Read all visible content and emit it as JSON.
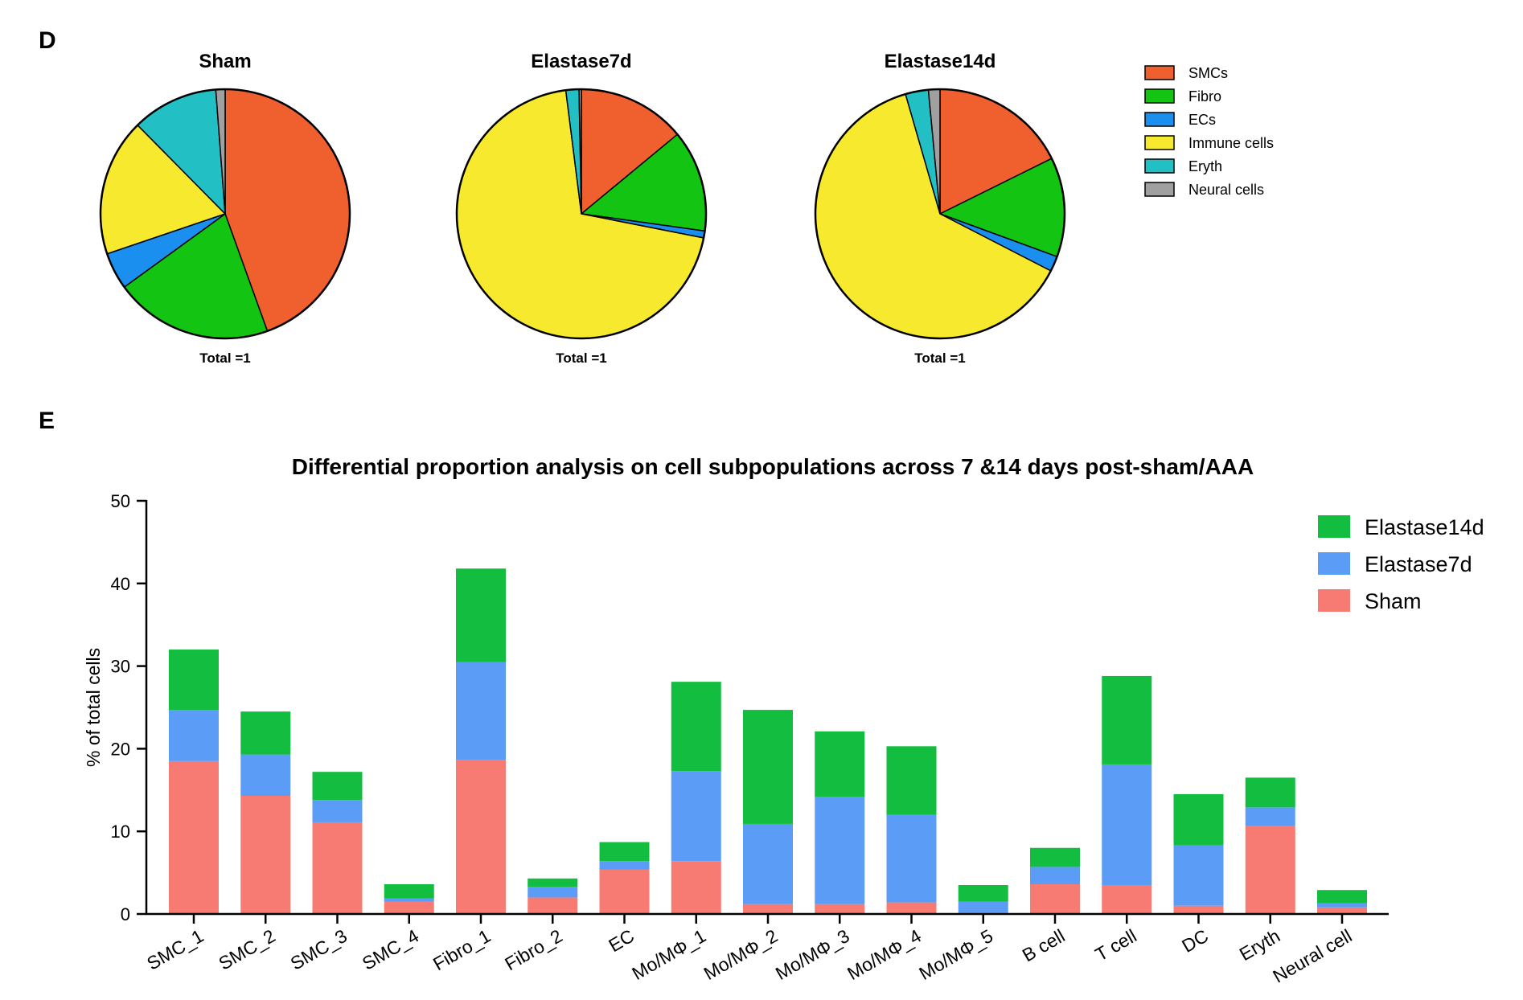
{
  "panel_d_letter": "D",
  "panel_e_letter": "E",
  "colors": {
    "SMCs": "#f0602f",
    "Fibro": "#13c413",
    "ECs": "#1a8ff0",
    "Immune cells": "#f7ea2e",
    "Eryth": "#22bfc4",
    "Neural cells": "#a0a0a0",
    "Elastase14d": "#13bd3f",
    "Elastase7d": "#5b9cf7",
    "Sham": "#f77b72"
  },
  "chart_data": [
    {
      "type": "pie",
      "title": "Sham",
      "footer": "Total =1",
      "labels": [
        "SMCs",
        "Fibro",
        "ECs",
        "Immune cells",
        "Eryth",
        "Neural cells"
      ],
      "values": [
        0.445,
        0.205,
        0.048,
        0.178,
        0.112,
        0.012
      ]
    },
    {
      "type": "pie",
      "title": "Elastase7d",
      "footer": "Total =1",
      "labels": [
        "SMCs",
        "Fibro",
        "ECs",
        "Immune cells",
        "Eryth",
        "Neural cells"
      ],
      "values": [
        0.14,
        0.132,
        0.009,
        0.699,
        0.017,
        0.003
      ]
    },
    {
      "type": "pie",
      "title": "Elastase14d",
      "footer": "Total =1",
      "labels": [
        "SMCs",
        "Fibro",
        "ECs",
        "Immune cells",
        "Eryth",
        "Neural cells"
      ],
      "values": [
        0.178,
        0.13,
        0.02,
        0.634,
        0.03,
        0.015
      ]
    },
    {
      "type": "bar",
      "stacked": true,
      "title": "Differential proportion analysis on cell subpopulations across 7 &14 days post-sham/AAA",
      "ylabel": "% of total cells",
      "xlabel": "",
      "ylim": [
        0,
        50
      ],
      "yticks": [
        0,
        10,
        20,
        30,
        40,
        50
      ],
      "legend_order": [
        "Elastase14d",
        "Elastase7d",
        "Sham"
      ],
      "categories": [
        "SMC_1",
        "SMC_2",
        "SMC_3",
        "SMC_4",
        "Fibro_1",
        "Fibro_2",
        "EC",
        "Mo/MΦ_1",
        "Mo/MΦ_2",
        "Mo/MΦ_3",
        "Mo/MΦ_4",
        "Mo/MΦ_5",
        "B cell",
        "T cell",
        "DC",
        "Eryth",
        "Neural cell"
      ],
      "series": [
        {
          "name": "Sham",
          "values": [
            18.5,
            14.3,
            11.1,
            1.5,
            18.6,
            2.0,
            5.4,
            6.4,
            1.2,
            1.2,
            1.4,
            0.2,
            3.6,
            3.5,
            1.0,
            10.7,
            0.8
          ]
        },
        {
          "name": "Elastase7d",
          "values": [
            6.2,
            5.0,
            2.7,
            0.4,
            11.9,
            1.3,
            1.0,
            10.9,
            9.7,
            13.0,
            10.6,
            1.3,
            2.1,
            14.6,
            7.3,
            2.2,
            0.5
          ]
        },
        {
          "name": "Elastase14d",
          "values": [
            7.3,
            5.2,
            3.4,
            1.7,
            11.3,
            1.0,
            2.3,
            10.8,
            13.8,
            7.9,
            8.3,
            2.0,
            2.3,
            10.7,
            6.2,
            3.6,
            1.6
          ]
        }
      ]
    }
  ]
}
